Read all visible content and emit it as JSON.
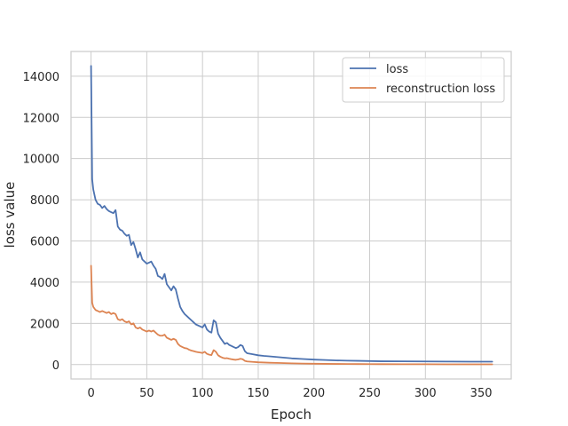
{
  "chart_data": {
    "type": "line",
    "title": "",
    "xlabel": "Epoch",
    "ylabel": "loss value",
    "xlim": [
      -18,
      377
    ],
    "ylim": [
      -700,
      15200
    ],
    "xticks": [
      0,
      50,
      100,
      150,
      200,
      250,
      300,
      350
    ],
    "yticks": [
      0,
      2000,
      4000,
      6000,
      8000,
      10000,
      12000,
      14000
    ],
    "grid": true,
    "legend_position": "top-right",
    "series": [
      {
        "name": "loss",
        "color": "#4c72b0",
        "x": [
          0,
          1,
          2,
          4,
          6,
          8,
          10,
          12,
          14,
          16,
          18,
          20,
          22,
          24,
          26,
          28,
          30,
          32,
          34,
          36,
          38,
          40,
          42,
          44,
          46,
          48,
          50,
          52,
          54,
          56,
          58,
          60,
          62,
          64,
          66,
          68,
          70,
          72,
          74,
          76,
          78,
          80,
          82,
          84,
          86,
          88,
          90,
          92,
          94,
          96,
          98,
          100,
          102,
          104,
          106,
          108,
          110,
          112,
          114,
          116,
          118,
          120,
          122,
          124,
          126,
          128,
          130,
          132,
          134,
          136,
          138,
          140,
          145,
          150,
          155,
          160,
          170,
          180,
          190,
          200,
          210,
          220,
          230,
          240,
          250,
          260,
          280,
          300,
          320,
          340,
          360
        ],
        "y": [
          14500,
          9000,
          8500,
          8000,
          7800,
          7750,
          7600,
          7700,
          7550,
          7450,
          7400,
          7350,
          7500,
          6700,
          6550,
          6500,
          6350,
          6250,
          6300,
          5800,
          5950,
          5600,
          5200,
          5450,
          5100,
          5000,
          4900,
          4950,
          5000,
          4800,
          4650,
          4300,
          4250,
          4150,
          4400,
          3900,
          3750,
          3600,
          3800,
          3650,
          3200,
          2800,
          2600,
          2450,
          2350,
          2250,
          2150,
          2050,
          1950,
          1900,
          1850,
          1800,
          1950,
          1700,
          1600,
          1550,
          2150,
          2050,
          1500,
          1300,
          1150,
          1000,
          1050,
          950,
          900,
          850,
          800,
          850,
          950,
          900,
          650,
          550,
          500,
          450,
          420,
          400,
          350,
          300,
          270,
          240,
          220,
          200,
          190,
          180,
          170,
          160,
          155,
          150,
          145,
          140,
          140
        ]
      },
      {
        "name": "reconstruction loss",
        "color": "#dd8452",
        "x": [
          0,
          1,
          2,
          4,
          6,
          8,
          10,
          12,
          14,
          16,
          18,
          20,
          22,
          24,
          26,
          28,
          30,
          32,
          34,
          36,
          38,
          40,
          42,
          44,
          46,
          48,
          50,
          52,
          54,
          56,
          58,
          60,
          62,
          64,
          66,
          68,
          70,
          72,
          74,
          76,
          78,
          80,
          82,
          84,
          86,
          88,
          90,
          92,
          94,
          96,
          98,
          100,
          102,
          104,
          106,
          108,
          110,
          112,
          114,
          116,
          118,
          120,
          122,
          124,
          126,
          128,
          130,
          132,
          134,
          136,
          138,
          140,
          145,
          150,
          155,
          160,
          170,
          180,
          190,
          200,
          210,
          220,
          230,
          240,
          250,
          260,
          280,
          300,
          320,
          340,
          360
        ],
        "y": [
          4800,
          3000,
          2800,
          2650,
          2600,
          2550,
          2600,
          2550,
          2500,
          2550,
          2450,
          2500,
          2450,
          2200,
          2150,
          2200,
          2100,
          2050,
          2100,
          1950,
          2000,
          1800,
          1750,
          1800,
          1700,
          1650,
          1600,
          1650,
          1600,
          1650,
          1550,
          1450,
          1400,
          1400,
          1450,
          1300,
          1250,
          1200,
          1250,
          1200,
          1000,
          900,
          850,
          800,
          780,
          720,
          680,
          650,
          620,
          600,
          580,
          560,
          620,
          520,
          480,
          460,
          700,
          620,
          450,
          380,
          330,
          300,
          310,
          280,
          260,
          240,
          230,
          250,
          280,
          260,
          180,
          150,
          130,
          110,
          100,
          90,
          75,
          60,
          50,
          40,
          35,
          30,
          28,
          25,
          22,
          20,
          18,
          15,
          12,
          10,
          10
        ]
      }
    ]
  }
}
